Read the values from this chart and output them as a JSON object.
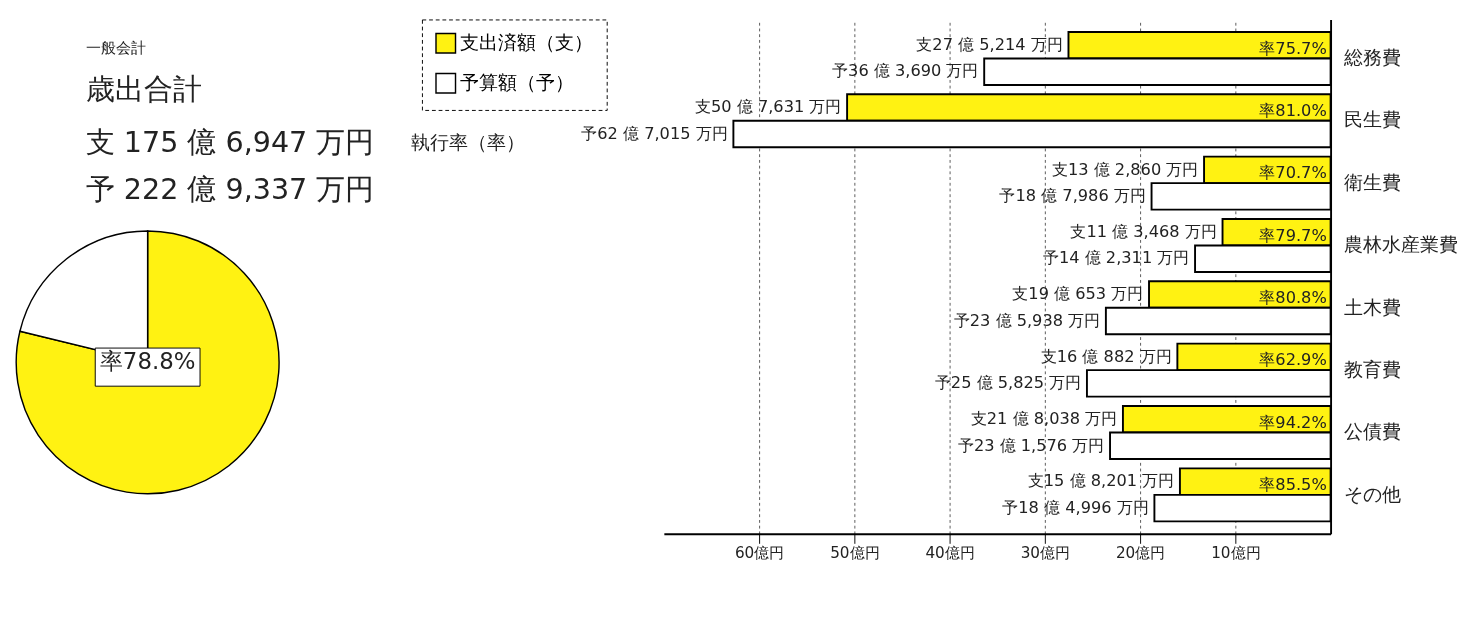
{
  "chart_data": [
    {
      "type": "pie",
      "title": "歳出合計",
      "subtitle": "一般会計",
      "categories": [
        null,
        null
      ],
      "values": [
        78.8,
        21.2
      ],
      "colors": [
        "#fff212",
        "#ffffff"
      ],
      "annotations": [
        "支 175 億 6,947 万円",
        "予 222 億 9,337 万円",
        "率78.8%"
      ]
    },
    {
      "type": "bar",
      "orientation": "horizontal",
      "categories": [
        "総務費",
        "民生費",
        "衛生費",
        "農林水産業費",
        "土木費",
        "教育費",
        "公債費",
        "その他"
      ],
      "series": [
        {
          "name": "支出済額（支）",
          "color": "#fff212",
          "values": [
            27.5214,
            50.7631,
            13.286,
            11.3468,
            19.0653,
            16.0882,
            21.8038,
            15.8201
          ],
          "value_labels": [
            "支27 億 5,214 万円",
            "支50 億 7,631 万円",
            "支13 億 2,860 万円",
            "支11 億 3,468 万円",
            "支19 億 653 万円",
            "支16 億 882 万円",
            "支21 億 8,038 万円",
            "支15 億 8,201 万円"
          ]
        },
        {
          "name": "予算額（予）",
          "color": "#ffffff",
          "values": [
            36.369,
            62.7015,
            18.7986,
            14.2311,
            23.5938,
            25.5825,
            23.1576,
            18.4996
          ],
          "value_labels": [
            "予36 億 3,690 万円",
            "予62 億 7,015 万円",
            "予18 億 7,986 万円",
            "予14 億 2,311 万円",
            "予23 億 5,938 万円",
            "予25 億 5,825 万円",
            "予23 億 1,576 万円",
            "予18 億 4,996 万円"
          ]
        }
      ],
      "xlim": [
        70,
        0
      ],
      "xticks": [
        {
          "value": 60,
          "label": "60億円"
        },
        {
          "value": 50,
          "label": "50億円"
        },
        {
          "value": 40,
          "label": "40億円"
        },
        {
          "value": 30,
          "label": "30億円"
        },
        {
          "value": 20,
          "label": "20億円"
        },
        {
          "value": 10,
          "label": "10億円"
        }
      ],
      "grid": "x",
      "legend": "left",
      "annotations": [
        "執行率（率）",
        {
          "text": "率75.7%",
          "y": "総務費"
        },
        {
          "text": "率81.0%",
          "y": "民生費"
        },
        {
          "text": "率70.7%",
          "y": "衛生費"
        },
        {
          "text": "率79.7%",
          "y": "農林水産業費"
        },
        {
          "text": "率80.8%",
          "y": "土木費"
        },
        {
          "text": "率62.9%",
          "y": "教育費"
        },
        {
          "text": "率94.2%",
          "y": "公債費"
        },
        {
          "text": "率85.5%",
          "y": "その他"
        }
      ]
    }
  ]
}
